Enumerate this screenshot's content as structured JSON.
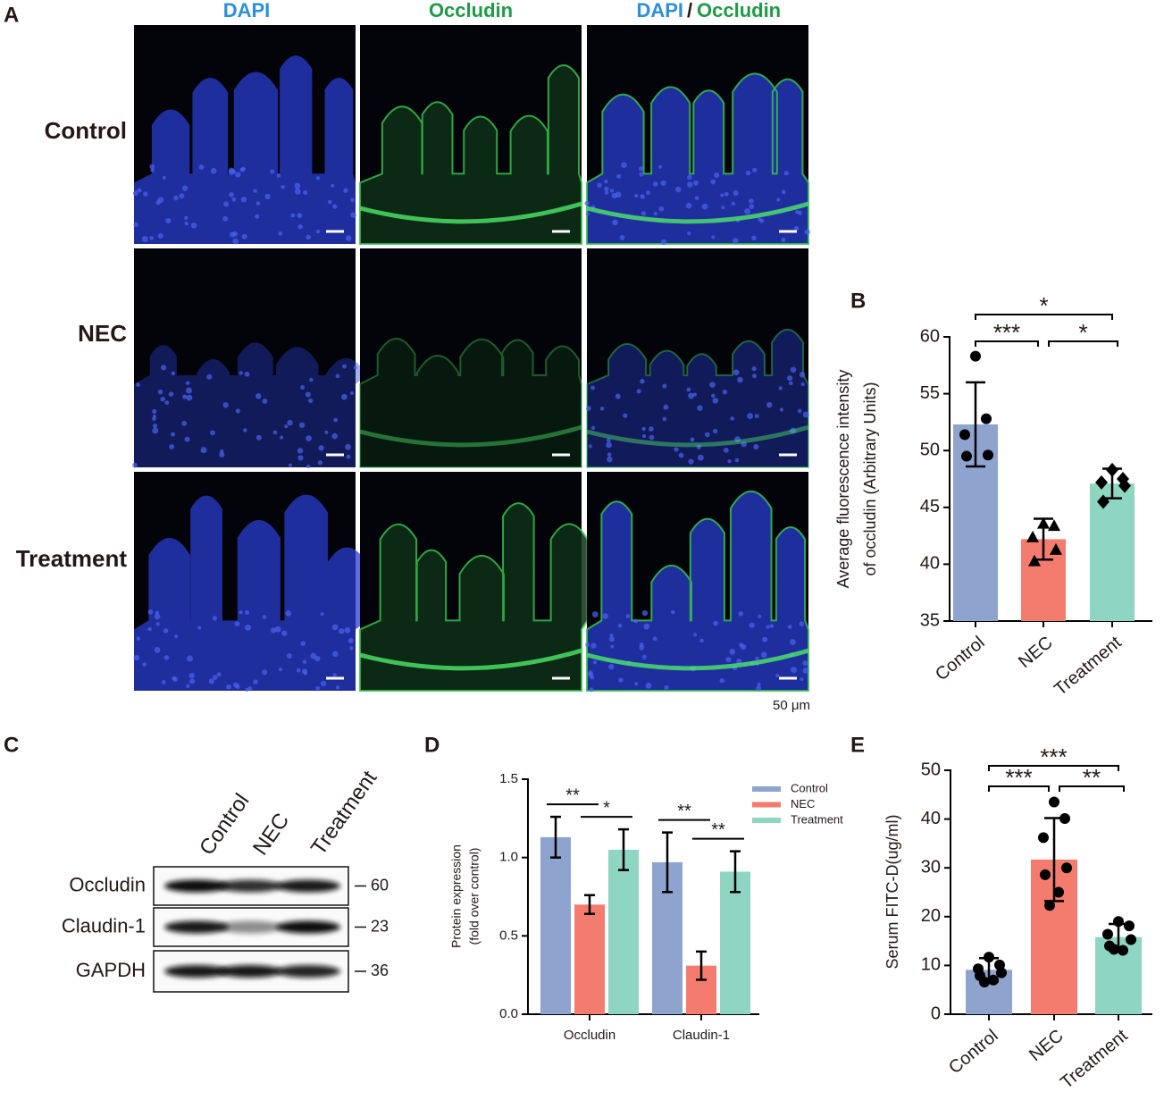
{
  "panel_letters": [
    "A",
    "B",
    "C",
    "D",
    "E"
  ],
  "panel_a": {
    "columns": [
      "DAPI",
      "Occludin"
    ],
    "merge_header": {
      "left": "DAPI",
      "separator": "/",
      "right": "Occludin"
    },
    "rows": [
      "Control",
      "NEC",
      "Treatment"
    ],
    "scale_bar": "50 μm"
  },
  "panel_c": {
    "lanes": [
      "Control",
      "NEC",
      "Treatment"
    ],
    "proteins": [
      "Occludin",
      "Claudin-1",
      "GAPDH"
    ],
    "markers": [
      60,
      23,
      36
    ]
  },
  "chart_data": [
    {
      "type": "bar",
      "ylabel": [
        "Average fluorescence intensity",
        "of occludin (Arbitrary Units)"
      ],
      "categories": [
        "Control",
        "NEC",
        "Treatment"
      ],
      "values": [
        52.3,
        42.2,
        47.1
      ],
      "errors": [
        3.7,
        1.8,
        1.3
      ],
      "points": [
        [
          58.3,
          52.8,
          51.4,
          49.6,
          49.5
        ],
        [
          43.6,
          43.4,
          42.4,
          41.3,
          40.3
        ],
        [
          48.3,
          47.5,
          47.2,
          46.9,
          45.5
        ]
      ],
      "markers": [
        "circle",
        "triangle",
        "diamond"
      ],
      "colors": [
        "#8fa3cf",
        "#f47c6f",
        "#8fd6c2"
      ],
      "ylim": [
        35,
        60
      ],
      "yticks": [
        35,
        40,
        45,
        50,
        55,
        60
      ],
      "annotations": [
        {
          "text": "***",
          "from": 0,
          "to": 1
        },
        {
          "text": "*",
          "from": 1,
          "to": 2
        },
        {
          "text": "*",
          "from": 0,
          "to": 2
        }
      ]
    },
    {
      "type": "bar",
      "ylabel": [
        "Protein expression",
        "(fold over control)"
      ],
      "categories": [
        "Occludin",
        "Claudin-1"
      ],
      "series": [
        {
          "name": "Control",
          "color": "#8fa3cf",
          "values": [
            1.13,
            0.97
          ],
          "errors": [
            0.13,
            0.19
          ]
        },
        {
          "name": "NEC",
          "color": "#f47c6f",
          "values": [
            0.7,
            0.31
          ],
          "errors": [
            0.06,
            0.09
          ]
        },
        {
          "name": "Treatment",
          "color": "#8fd6c2",
          "values": [
            1.05,
            0.91
          ],
          "errors": [
            0.13,
            0.13
          ]
        }
      ],
      "ylim": [
        0,
        1.5
      ],
      "yticks": [
        {
          "value": 0,
          "label": "0.0"
        },
        0.5,
        {
          "value": 1,
          "label": "1.0"
        },
        1.5
      ],
      "legend": "top-right",
      "annotations": [
        {
          "text": "**",
          "category": 0,
          "from": 0,
          "to": 1
        },
        {
          "text": "*",
          "category": 0,
          "from": 1,
          "to": 2
        },
        {
          "text": "**",
          "category": 1,
          "from": 0,
          "to": 1
        },
        {
          "text": "**",
          "category": 1,
          "from": 1,
          "to": 2
        }
      ]
    },
    {
      "type": "bar",
      "ylabel": [
        "Serum FITC-D(ug/ml)"
      ],
      "categories": [
        "Control",
        "NEC",
        "Treatment"
      ],
      "values": [
        9.1,
        31.7,
        15.8
      ],
      "errors": [
        2.4,
        8.5,
        2.7
      ],
      "points": [
        [
          11.7,
          10.1,
          9.3,
          8.5,
          7.9,
          7.0,
          6.6
        ],
        [
          43.5,
          40.1,
          36.2,
          30.0,
          28.6,
          25.0,
          22.3
        ],
        [
          19.0,
          18.1,
          16.4,
          15.3,
          14.0,
          13.1,
          13.3
        ]
      ],
      "markers": [
        "circle",
        "circle",
        "circle"
      ],
      "colors": [
        "#8fa3cf",
        "#f47c6f",
        "#8fd6c2"
      ],
      "ylim": [
        0,
        50
      ],
      "yticks": [
        0,
        10,
        20,
        30,
        40,
        50
      ],
      "annotations": [
        {
          "text": "***",
          "from": 0,
          "to": 1
        },
        {
          "text": "**",
          "from": 1,
          "to": 2
        },
        {
          "text": "***",
          "from": 0,
          "to": 2
        }
      ]
    }
  ]
}
